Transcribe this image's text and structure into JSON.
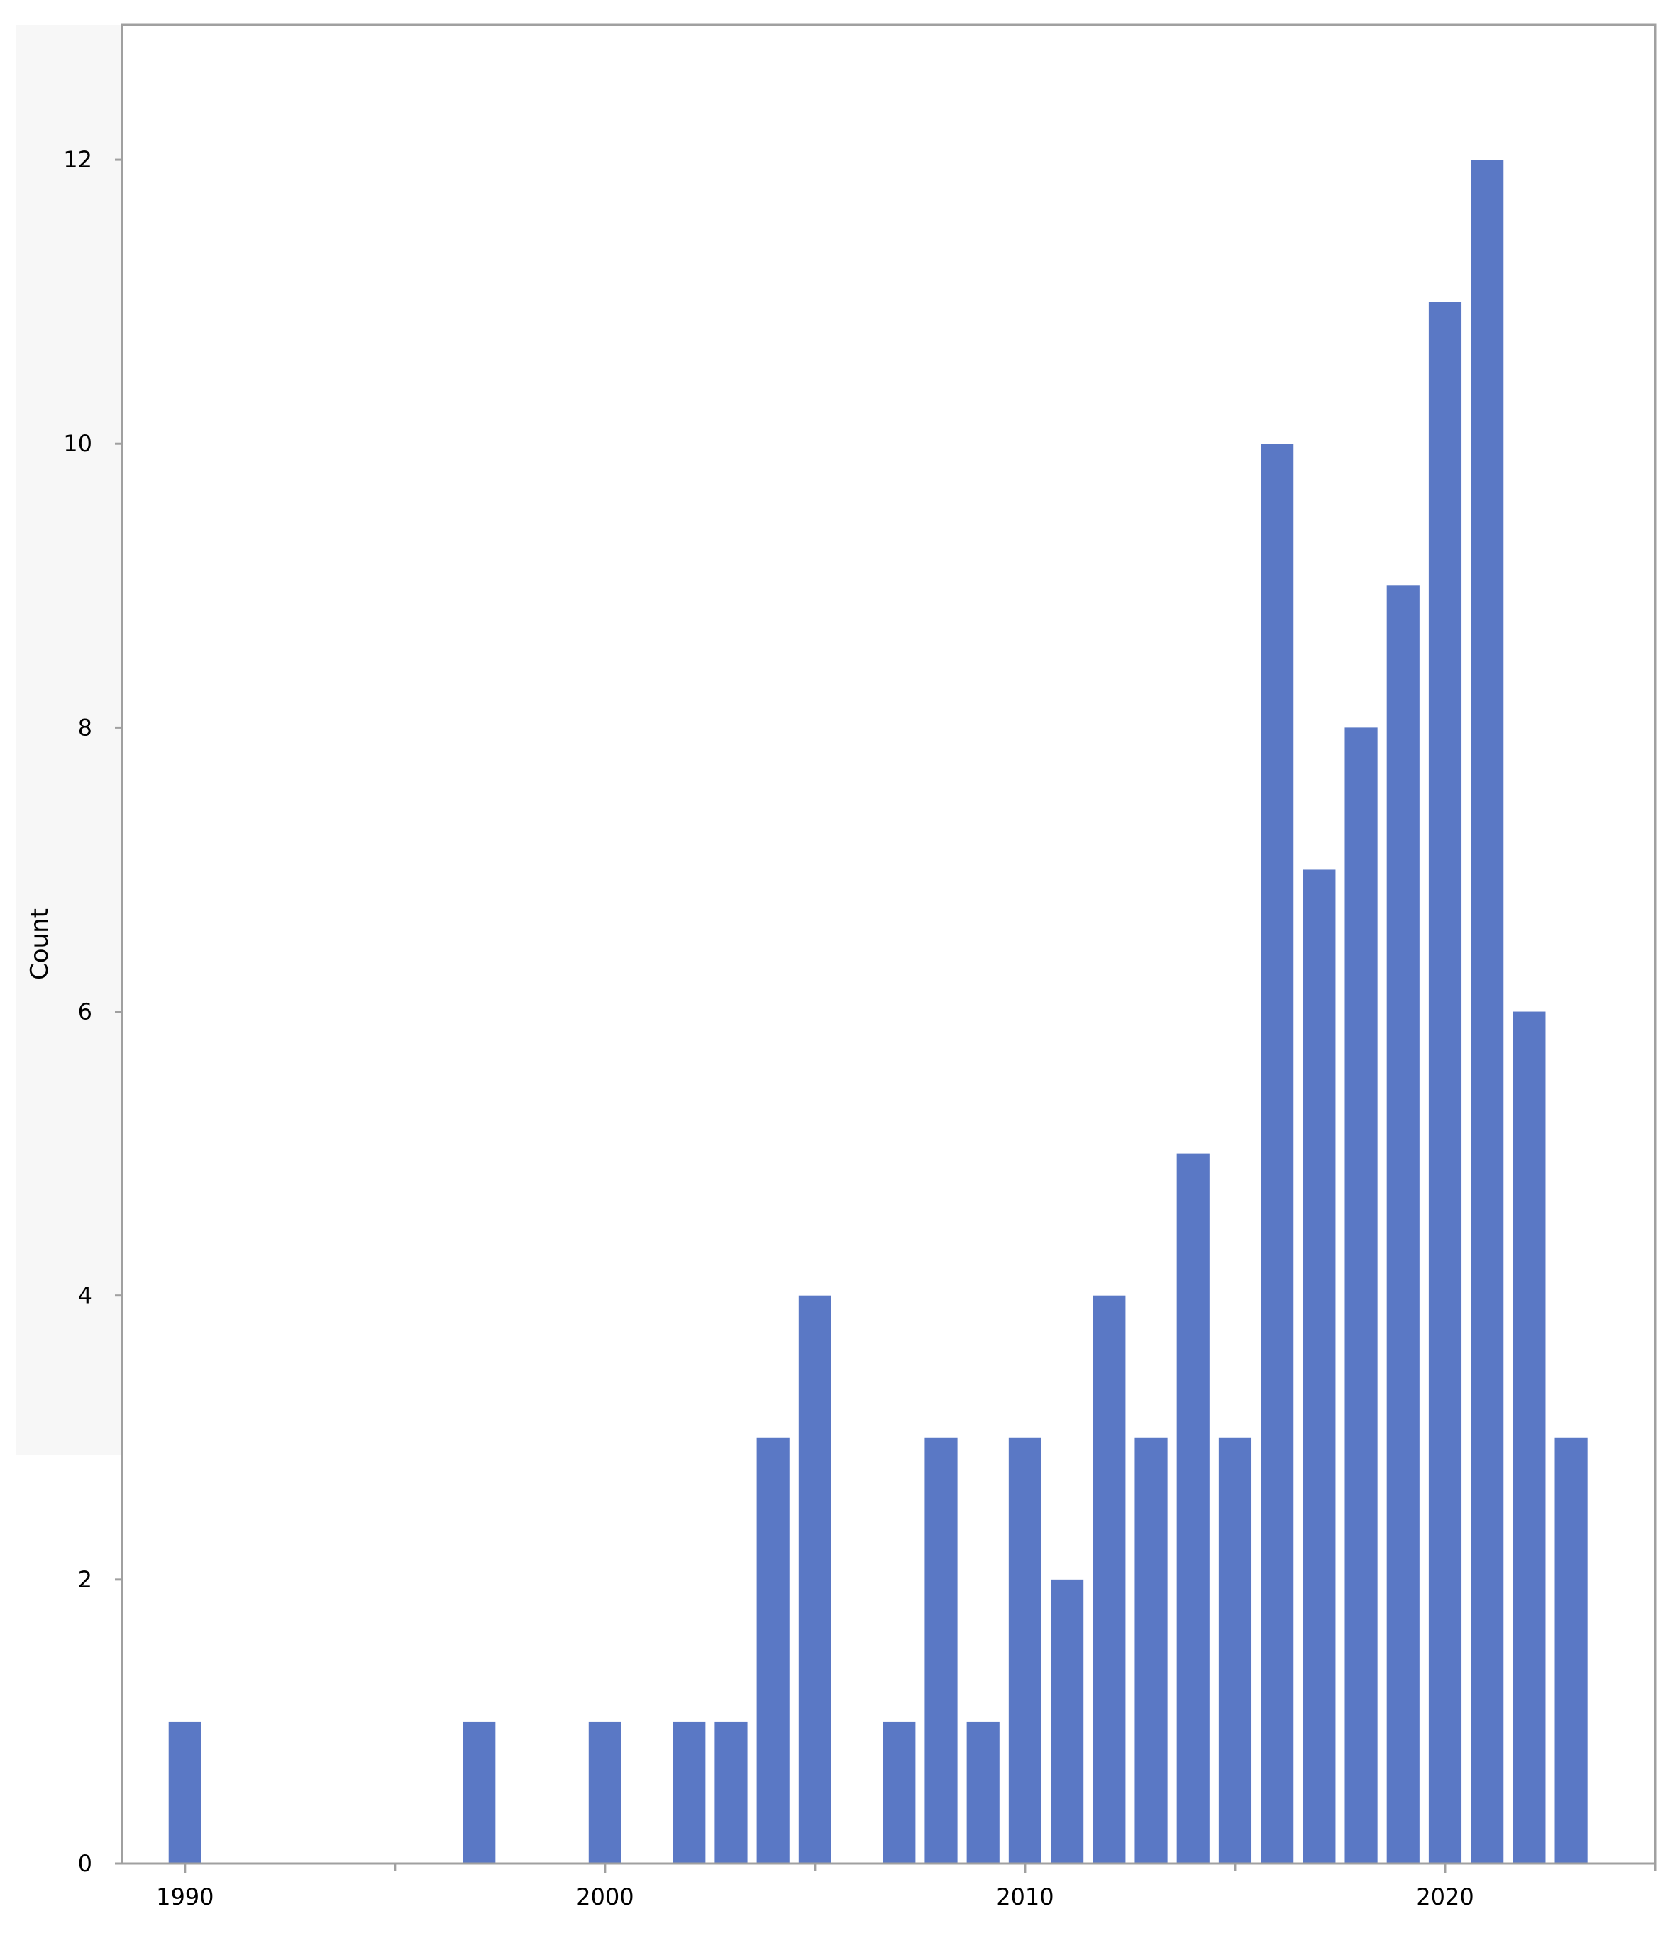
{
  "chart_data": {
    "type": "bar",
    "x": [
      1990,
      1997,
      2000,
      2002,
      2003,
      2004,
      2005,
      2007,
      2008,
      2009,
      2010,
      2011,
      2012,
      2013,
      2014,
      2015,
      2016,
      2017,
      2018,
      2019,
      2020,
      2021,
      2022,
      2023
    ],
    "values": [
      1,
      1,
      1,
      1,
      1,
      3,
      4,
      1,
      3,
      1,
      3,
      2,
      4,
      3,
      5,
      3,
      10,
      7,
      8,
      9,
      11,
      12,
      6,
      3
    ],
    "title": "",
    "xlabel": "",
    "ylabel": "Count",
    "xlim": [
      1988.5,
      2025
    ],
    "ylim": [
      0,
      12.95
    ],
    "x_ticks": [
      "1990",
      "2000",
      "2010",
      "2020"
    ],
    "y_ticks": [
      "0",
      "2",
      "4",
      "6",
      "8",
      "10",
      "12"
    ],
    "grid": false,
    "legend": "none",
    "bar_color": "#5a78c5",
    "axis_color": "#a0a0a0"
  }
}
